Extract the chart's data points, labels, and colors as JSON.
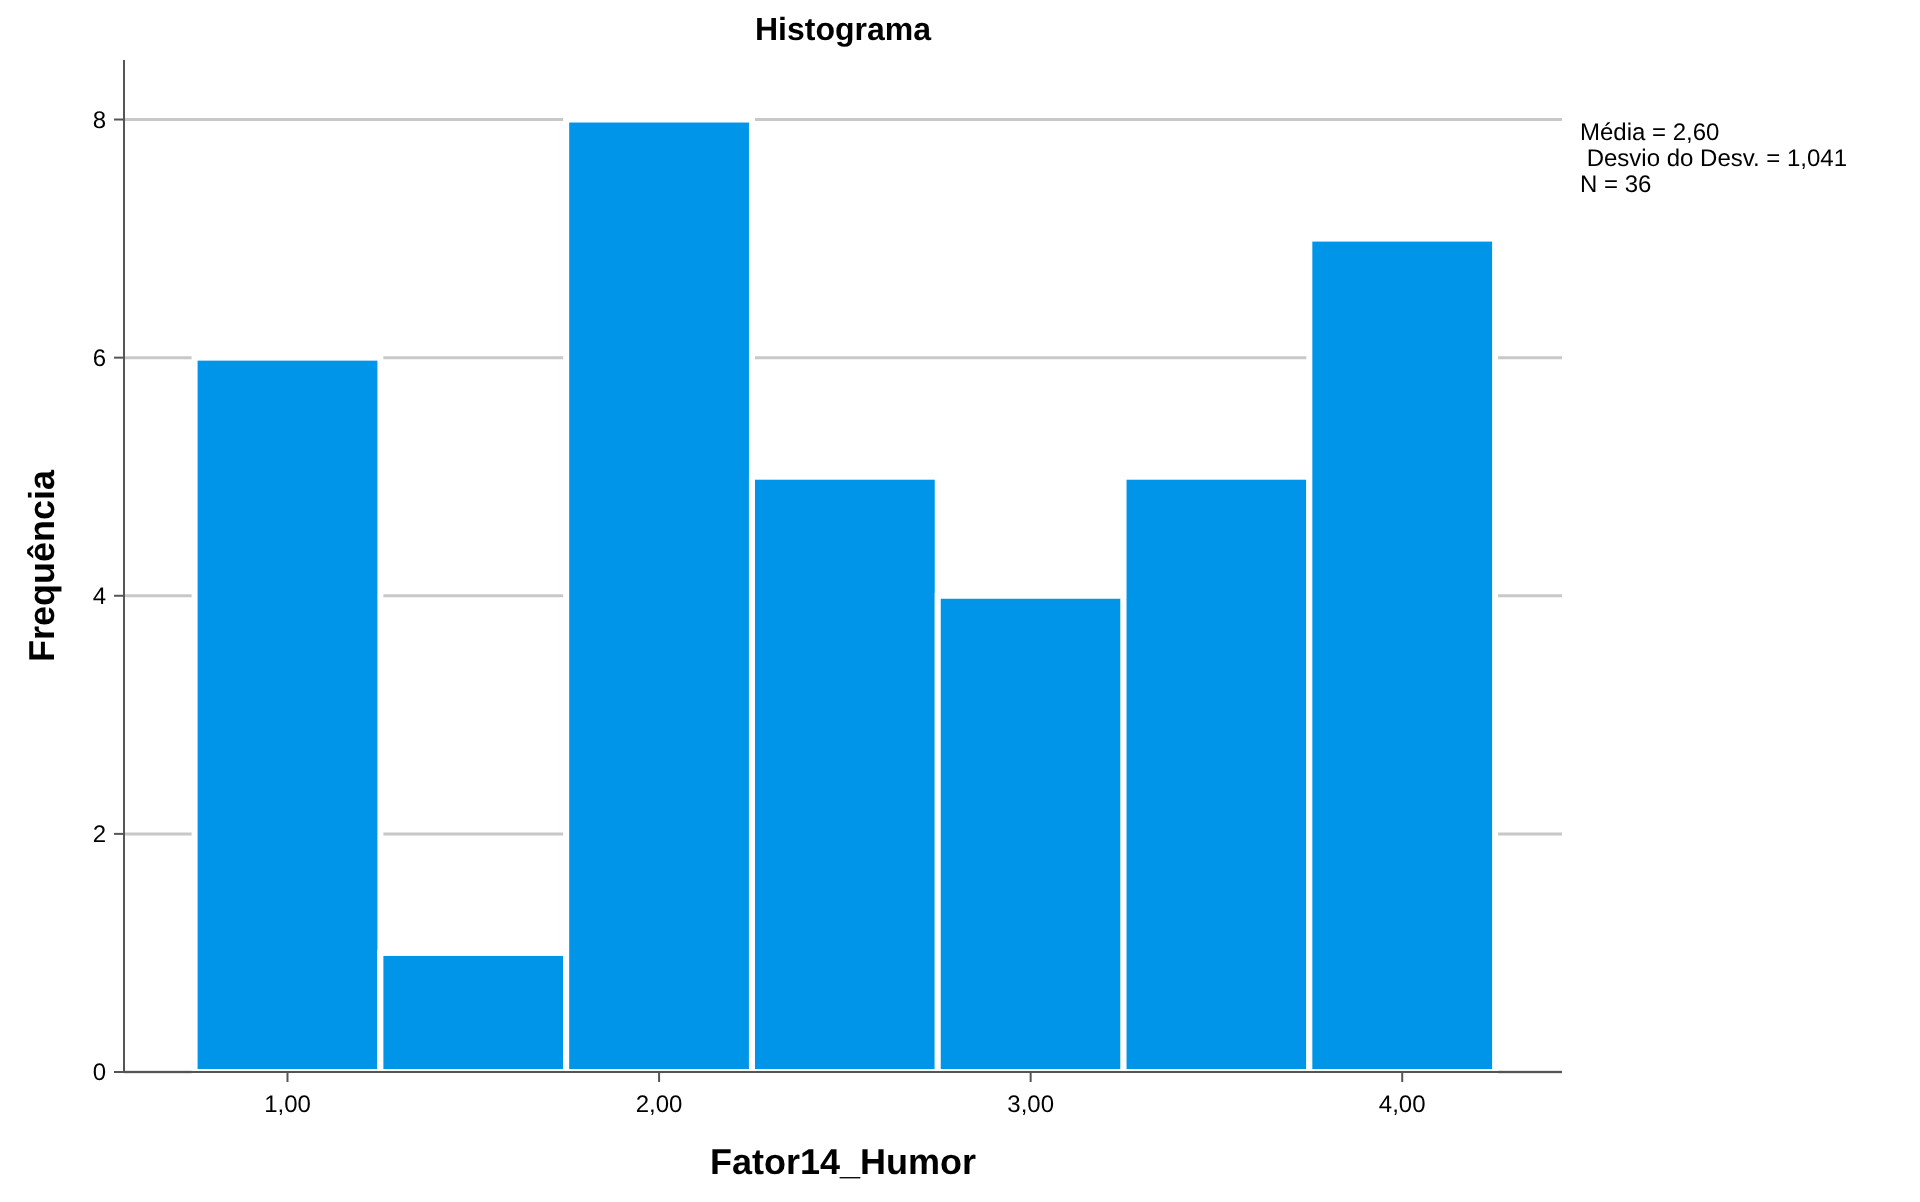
{
  "chart_data": {
    "type": "histogram",
    "title": "Histograma",
    "xlabel": "Fator14_Humor",
    "ylabel": "Frequência",
    "bins": [
      0.75,
      1.25,
      1.75,
      2.25,
      2.75,
      3.25,
      3.75,
      4.25
    ],
    "values": [
      6,
      1,
      8,
      5,
      4,
      5,
      7
    ],
    "color": "#0095e8",
    "xlim": [
      0.56,
      4.43
    ],
    "ylim": [
      0,
      8.5
    ],
    "xticks": [
      {
        "value": 1,
        "label": "1,00"
      },
      {
        "value": 2,
        "label": "2,00"
      },
      {
        "value": 3,
        "label": "3,00"
      },
      {
        "value": 4,
        "label": "4,00"
      }
    ],
    "yticks": [
      0,
      2,
      4,
      6,
      8
    ],
    "grid": "y",
    "annotations": [
      "Média = 2,60",
      " Desvio do Desv. = 1,041",
      "N = 36"
    ]
  }
}
